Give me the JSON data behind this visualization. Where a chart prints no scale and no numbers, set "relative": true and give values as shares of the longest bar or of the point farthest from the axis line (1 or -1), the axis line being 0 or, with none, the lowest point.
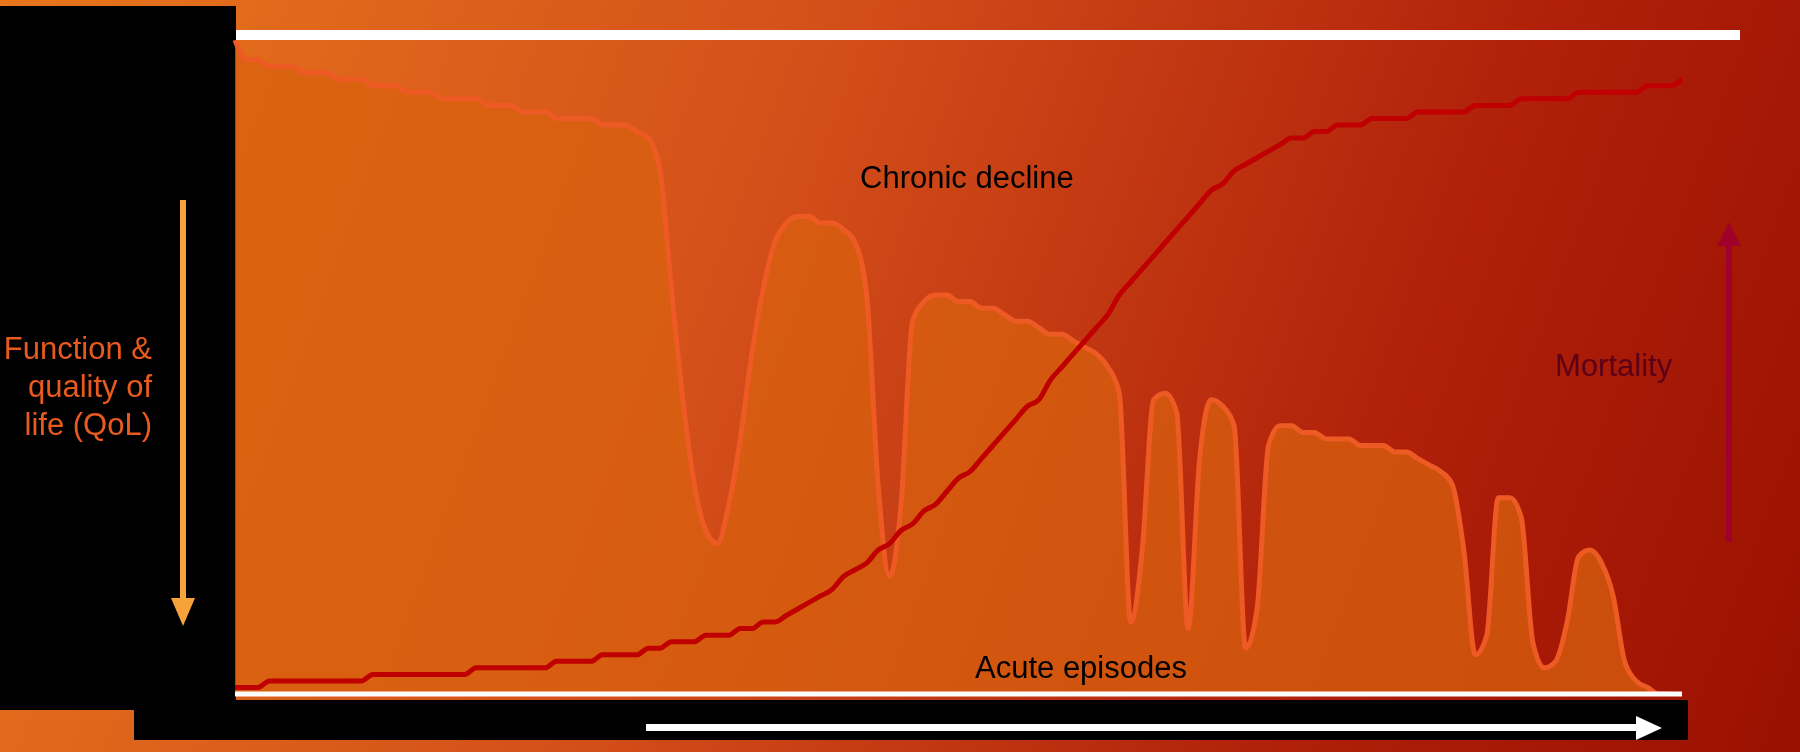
{
  "chart_data": {
    "type": "area",
    "relative": true,
    "ylabel": "Function & quality of life (QoL)",
    "y2label": "Mortality",
    "annotations": [
      "Chronic decline",
      "Acute episodes"
    ],
    "categories": [
      null,
      null,
      null,
      null,
      null,
      null,
      null,
      null,
      null,
      null,
      null,
      null,
      null,
      null,
      null,
      null,
      null,
      null,
      null,
      null,
      null,
      null,
      null,
      null,
      null,
      null,
      null,
      null,
      null,
      null,
      null,
      null,
      null,
      null,
      null,
      null,
      null,
      null,
      null,
      null,
      null,
      null,
      null,
      null,
      null,
      null,
      null,
      null,
      null,
      null,
      null,
      null,
      null,
      null,
      null,
      null,
      null,
      null,
      null,
      null,
      null,
      null,
      null,
      null,
      null,
      null,
      null,
      null,
      null,
      null,
      null,
      null,
      null,
      null,
      null,
      null,
      null,
      null,
      null,
      null,
      null,
      null,
      null,
      null,
      null,
      null,
      null,
      null,
      null,
      null,
      null,
      null,
      null,
      null,
      null,
      null,
      null,
      null,
      null,
      null,
      null,
      null,
      null,
      null,
      null,
      null,
      null,
      null,
      null,
      null,
      null,
      null,
      null,
      null,
      null,
      null,
      null,
      null,
      null,
      null,
      null,
      null,
      null,
      null,
      null,
      null,
      null
    ],
    "series": [
      {
        "color": "#ee5a24",
        "values": [
          1.0,
          0.97,
          0.97,
          0.96,
          0.96,
          0.96,
          0.95,
          0.95,
          0.95,
          0.94,
          0.94,
          0.94,
          0.93,
          0.93,
          0.93,
          0.92,
          0.92,
          0.92,
          0.91,
          0.91,
          0.91,
          0.91,
          0.9,
          0.9,
          0.9,
          0.89,
          0.89,
          0.89,
          0.88,
          0.88,
          0.88,
          0.88,
          0.87,
          0.87,
          0.87,
          0.86,
          0.85,
          0.8,
          0.62,
          0.45,
          0.32,
          0.25,
          0.23,
          0.29,
          0.39,
          0.52,
          0.62,
          0.69,
          0.72,
          0.73,
          0.73,
          0.72,
          0.72,
          0.71,
          0.69,
          0.61,
          0.32,
          0.18,
          0.29,
          0.57,
          0.6,
          0.61,
          0.61,
          0.6,
          0.6,
          0.59,
          0.59,
          0.58,
          0.57,
          0.57,
          0.56,
          0.55,
          0.55,
          0.54,
          0.53,
          0.52,
          0.5,
          0.46,
          0.11,
          0.22,
          0.45,
          0.46,
          0.43,
          0.1,
          0.36,
          0.45,
          0.44,
          0.41,
          0.07,
          0.13,
          0.38,
          0.41,
          0.41,
          0.4,
          0.4,
          0.39,
          0.39,
          0.39,
          0.38,
          0.38,
          0.38,
          0.37,
          0.37,
          0.36,
          0.35,
          0.34,
          0.32,
          0.22,
          0.06,
          0.09,
          0.3,
          0.3,
          0.27,
          0.08,
          0.04,
          0.05,
          0.11,
          0.21,
          0.22,
          0.2,
          0.15,
          0.05,
          0.02,
          0.01,
          0,
          0,
          null
        ]
      },
      {
        "type": "line",
        "color": "#c00000",
        "values": [
          0.01,
          0.01,
          0.01,
          0.02,
          0.02,
          0.02,
          0.02,
          0.02,
          0.02,
          0.02,
          0.02,
          0.02,
          0.03,
          0.03,
          0.03,
          0.03,
          0.03,
          0.03,
          0.03,
          0.03,
          0.03,
          0.04,
          0.04,
          0.04,
          0.04,
          0.04,
          0.04,
          0.04,
          0.05,
          0.05,
          0.05,
          0.05,
          0.06,
          0.06,
          0.06,
          0.06,
          0.07,
          0.07,
          0.08,
          0.08,
          0.08,
          0.09,
          0.09,
          0.09,
          0.1,
          0.1,
          0.11,
          0.11,
          0.12,
          0.13,
          0.14,
          0.15,
          0.16,
          0.18,
          0.19,
          0.2,
          0.22,
          0.23,
          0.25,
          0.26,
          0.28,
          0.29,
          0.31,
          0.33,
          0.34,
          0.36,
          0.38,
          0.4,
          0.42,
          0.44,
          0.45,
          0.48,
          0.5,
          0.52,
          0.54,
          0.56,
          0.58,
          0.61,
          0.63,
          0.65,
          0.67,
          0.69,
          0.71,
          0.73,
          0.75,
          0.77,
          0.78,
          0.8,
          0.81,
          0.82,
          0.83,
          0.84,
          0.85,
          0.85,
          0.86,
          0.86,
          0.87,
          0.87,
          0.87,
          0.88,
          0.88,
          0.88,
          0.88,
          0.89,
          0.89,
          0.89,
          0.89,
          0.89,
          0.9,
          0.9,
          0.9,
          0.9,
          0.91,
          0.91,
          0.91,
          0.91,
          0.91,
          0.92,
          0.92,
          0.92,
          0.92,
          0.92,
          0.92,
          0.93,
          0.93,
          0.93,
          0.94
        ]
      }
    ]
  }
}
